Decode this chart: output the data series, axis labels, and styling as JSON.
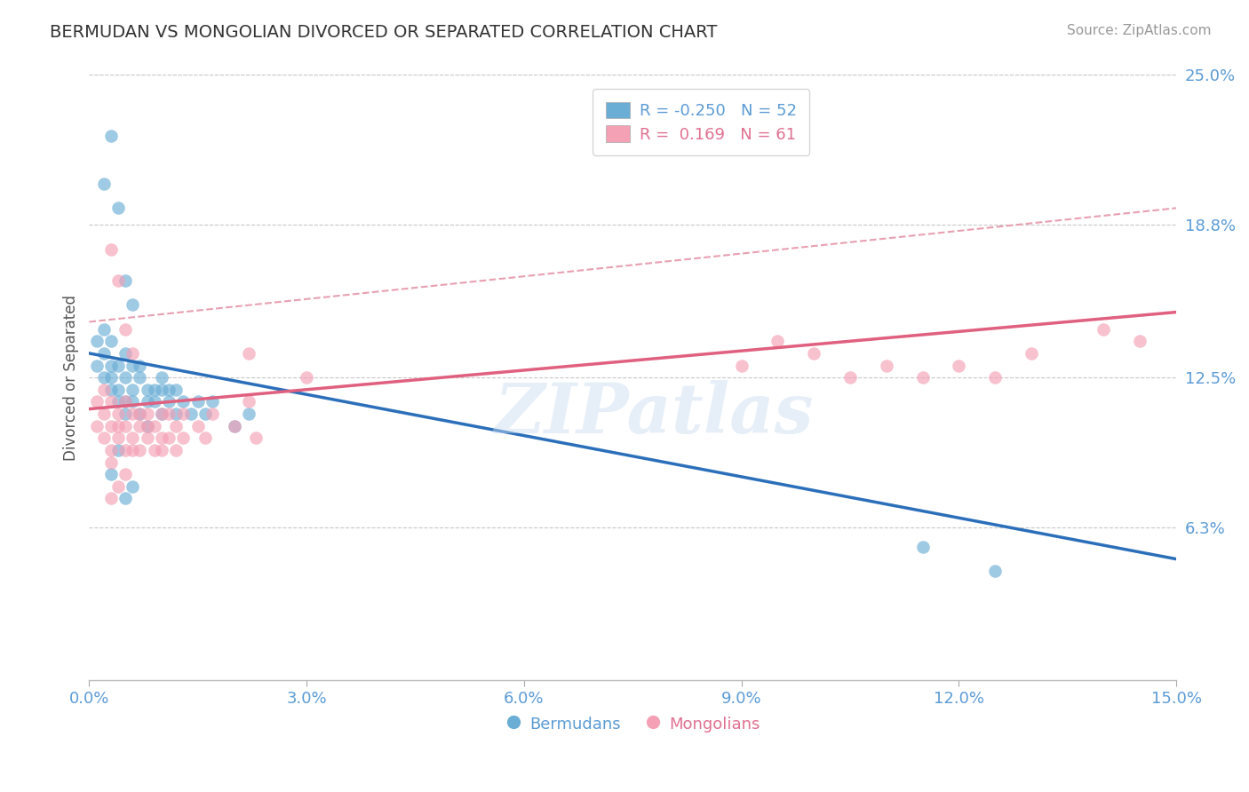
{
  "title": "BERMUDAN VS MONGOLIAN DIVORCED OR SEPARATED CORRELATION CHART",
  "source_text": "Source: ZipAtlas.com",
  "ylabel": "Divorced or Separated",
  "xlim": [
    0.0,
    15.0
  ],
  "ylim": [
    0.0,
    25.0
  ],
  "ytick_labels": [
    "6.3%",
    "12.5%",
    "18.8%",
    "25.0%"
  ],
  "ytick_positions": [
    6.3,
    12.5,
    18.8,
    25.0
  ],
  "xtick_positions": [
    0.0,
    3.0,
    6.0,
    9.0,
    12.0,
    15.0
  ],
  "xtick_labels": [
    "0.0%",
    "3.0%",
    "6.0%",
    "9.0%",
    "12.0%",
    "15.0%"
  ],
  "grid_color": "#c8c8c8",
  "background_color": "#ffffff",
  "blue_color": "#6aaed6",
  "pink_color": "#f4a0b5",
  "blue_line_color": "#2b6fba",
  "pink_line_color": "#e06080",
  "blue_line_x0": 0.0,
  "blue_line_y0": 13.5,
  "blue_line_x1": 15.0,
  "blue_line_y1": 5.0,
  "pink_line_x0": 0.0,
  "pink_line_y0": 11.2,
  "pink_line_x1": 15.0,
  "pink_line_y1": 15.2,
  "dash_line_x0": 0.0,
  "dash_line_y0": 14.8,
  "dash_line_x1": 15.0,
  "dash_line_y1": 19.5,
  "dash_color": "#e8a0b0",
  "blue_scatter_x": [
    0.1,
    0.1,
    0.2,
    0.2,
    0.2,
    0.3,
    0.3,
    0.3,
    0.3,
    0.4,
    0.4,
    0.4,
    0.5,
    0.5,
    0.5,
    0.5,
    0.6,
    0.6,
    0.6,
    0.7,
    0.7,
    0.7,
    0.8,
    0.8,
    0.8,
    0.9,
    0.9,
    1.0,
    1.0,
    1.0,
    1.1,
    1.1,
    1.2,
    1.2,
    1.3,
    1.4,
    1.5,
    1.6,
    1.7,
    2.0,
    2.2,
    0.2,
    0.3,
    0.4,
    0.5,
    0.6,
    0.3,
    0.4,
    0.5,
    0.6,
    11.5,
    12.5
  ],
  "blue_scatter_y": [
    14.0,
    13.0,
    12.5,
    13.5,
    14.5,
    12.0,
    13.0,
    14.0,
    12.5,
    11.5,
    13.0,
    12.0,
    11.5,
    12.5,
    13.5,
    11.0,
    12.0,
    13.0,
    11.5,
    11.0,
    12.5,
    13.0,
    11.5,
    12.0,
    10.5,
    11.5,
    12.0,
    11.0,
    12.0,
    12.5,
    11.5,
    12.0,
    11.0,
    12.0,
    11.5,
    11.0,
    11.5,
    11.0,
    11.5,
    10.5,
    11.0,
    20.5,
    22.5,
    19.5,
    16.5,
    15.5,
    8.5,
    9.5,
    7.5,
    8.0,
    5.5,
    4.5
  ],
  "pink_scatter_x": [
    0.1,
    0.1,
    0.2,
    0.2,
    0.2,
    0.3,
    0.3,
    0.3,
    0.4,
    0.4,
    0.4,
    0.5,
    0.5,
    0.5,
    0.6,
    0.6,
    0.6,
    0.7,
    0.7,
    0.7,
    0.8,
    0.8,
    0.8,
    0.9,
    0.9,
    1.0,
    1.0,
    1.0,
    1.1,
    1.1,
    1.2,
    1.2,
    1.3,
    1.3,
    1.5,
    1.6,
    1.7,
    2.0,
    2.2,
    2.3,
    0.3,
    0.4,
    0.5,
    0.6,
    0.5,
    0.4,
    0.3,
    0.3,
    2.2,
    3.0,
    9.0,
    9.5,
    10.0,
    10.5,
    11.0,
    11.5,
    12.0,
    12.5,
    13.0,
    14.0,
    14.5
  ],
  "pink_scatter_y": [
    11.5,
    10.5,
    11.0,
    12.0,
    10.0,
    10.5,
    11.5,
    9.5,
    10.0,
    11.0,
    10.5,
    9.5,
    10.5,
    11.5,
    10.0,
    11.0,
    9.5,
    10.5,
    11.0,
    9.5,
    10.0,
    11.0,
    10.5,
    9.5,
    10.5,
    10.0,
    11.0,
    9.5,
    10.0,
    11.0,
    10.5,
    9.5,
    10.0,
    11.0,
    10.5,
    10.0,
    11.0,
    10.5,
    11.5,
    10.0,
    17.8,
    16.5,
    14.5,
    13.5,
    8.5,
    8.0,
    7.5,
    9.0,
    13.5,
    12.5,
    13.0,
    14.0,
    13.5,
    12.5,
    13.0,
    12.5,
    13.0,
    12.5,
    13.5,
    14.5,
    14.0
  ],
  "watermark_text": "ZIPatlas",
  "legend_blue_label": "R = -0.250   N = 52",
  "legend_pink_label": "R =  0.169   N = 61",
  "bermudans_label": "Bermudans",
  "mongolians_label": "Mongolians",
  "title_fontsize": 14,
  "tick_fontsize": 13,
  "label_fontsize": 12
}
